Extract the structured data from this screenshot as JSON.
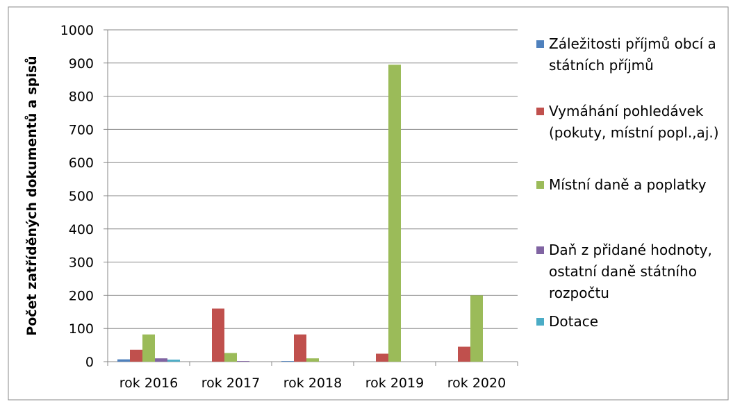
{
  "chart_data": {
    "type": "bar",
    "y_label": "Počet zatříděných dokumentů a spisů",
    "categories": [
      "rok 2016",
      "rok 2017",
      "rok 2018",
      "rok 2019",
      "rok 2020"
    ],
    "series": [
      {
        "name": "Záležitosti příjmů obcí a státních příjmů",
        "color": "#4f81bd",
        "values": [
          7,
          0,
          2,
          0,
          0
        ]
      },
      {
        "name": "Vymáhání pohledávek (pokuty, místní popl.,aj.)",
        "color": "#c0504d",
        "values": [
          36,
          160,
          82,
          24,
          45
        ]
      },
      {
        "name": "Místní daně a poplatky",
        "color": "#9bbb59",
        "values": [
          82,
          26,
          10,
          895,
          200
        ]
      },
      {
        "name": "Daň z přidané hodnoty, ostatní daně státního rozpočtu",
        "color": "#8064a2",
        "values": [
          10,
          2,
          0,
          0,
          0
        ]
      },
      {
        "name": "Dotace",
        "color": "#4bacc6",
        "values": [
          6,
          0,
          0,
          0,
          0
        ]
      }
    ],
    "ylim": [
      0,
      1000
    ],
    "yticks": [
      0,
      100,
      200,
      300,
      400,
      500,
      600,
      700,
      800,
      900,
      1000
    ],
    "grid": true,
    "legend": "right"
  }
}
